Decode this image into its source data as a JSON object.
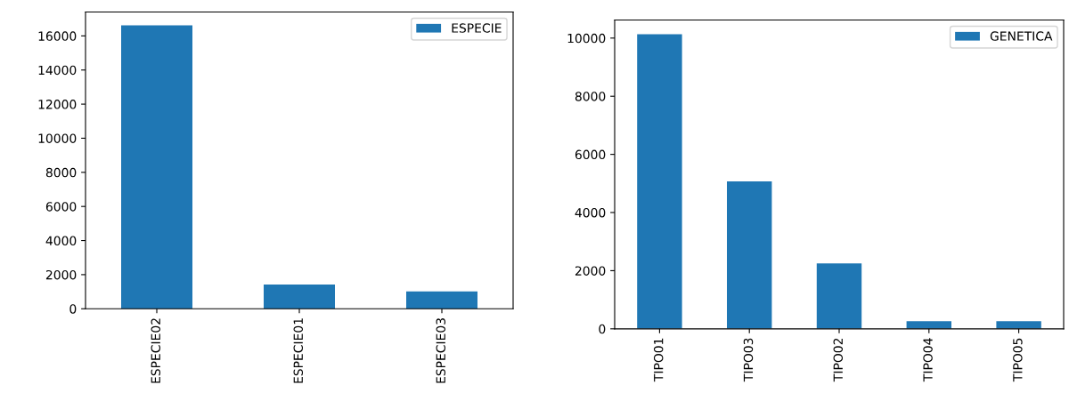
{
  "chart_data": [
    {
      "type": "bar",
      "categories": [
        "ESPECIE02",
        "ESPECIE01",
        "ESPECIE03"
      ],
      "series": [
        {
          "name": "ESPECIE",
          "color": "#1f77b4",
          "values": [
            16620,
            1420,
            1020
          ]
        }
      ],
      "ylim": [
        0,
        17400
      ],
      "yticks": [
        0,
        2000,
        4000,
        6000,
        8000,
        10000,
        12000,
        14000,
        16000
      ],
      "legend": "top right",
      "grid": false
    },
    {
      "type": "bar",
      "categories": [
        "TIPO01",
        "TIPO03",
        "TIPO02",
        "TIPO04",
        "TIPO05"
      ],
      "series": [
        {
          "name": "GENETICA",
          "color": "#1f77b4",
          "values": [
            10130,
            5070,
            2250,
            260,
            260
          ]
        }
      ],
      "ylim": [
        0,
        10620
      ],
      "yticks": [
        0,
        2000,
        4000,
        6000,
        8000,
        10000
      ],
      "legend": "top right",
      "grid": false
    }
  ]
}
